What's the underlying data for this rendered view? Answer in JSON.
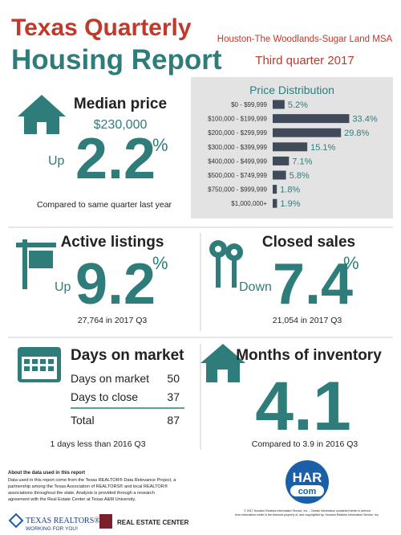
{
  "header": {
    "title_line1": "Texas Quarterly",
    "title_line2": "Housing Report",
    "region": "Houston-The Woodlands-Sugar Land MSA",
    "period": "Third quarter 2017"
  },
  "median_price": {
    "title": "Median price",
    "price": "$230,000",
    "direction": "Up",
    "change": "2.2",
    "unit": "%",
    "note": "Compared to same quarter last year"
  },
  "price_distribution": {
    "type": "bar",
    "orientation": "horizontal",
    "title": "Price Distribution",
    "categories": [
      "$0 - $99,999",
      "$100,000 - $199,999",
      "$200,000 - $299,999",
      "$300,000 - $399,999",
      "$400,000 - $499,999",
      "$500,000 - $749,999",
      "$750,000 - $999,999",
      "$1,000,000+"
    ],
    "values": [
      5.2,
      33.4,
      29.8,
      15.1,
      7.1,
      5.8,
      1.8,
      1.9
    ],
    "value_labels": [
      "5.2%",
      "33.4%",
      "29.8%",
      "15.1%",
      "7.1%",
      "5.8%",
      "1.8%",
      "1.9%"
    ],
    "color": "#404a58",
    "xlim": [
      0,
      35
    ]
  },
  "active_listings": {
    "title": "Active listings",
    "direction": "Up",
    "change": "9.2",
    "unit": "%",
    "note": "27,764 in 2017 Q3"
  },
  "closed_sales": {
    "title": "Closed sales",
    "direction": "Down",
    "change": "7.4",
    "unit": "%",
    "note": "21,054 in 2017 Q3"
  },
  "days_on_market": {
    "title": "Days on market",
    "rows": [
      [
        "Days on market",
        "50"
      ],
      [
        "Days to close",
        "37"
      ]
    ],
    "total": [
      "Total",
      "87"
    ],
    "note": "1 days less than 2016 Q3"
  },
  "months_of_inventory": {
    "title": "Months of inventory",
    "value": "4.1",
    "note": "Compared to 3.9 in 2016 Q3"
  },
  "footer": {
    "about_title": "About the data used in this report",
    "about_lines": [
      "Data used in this report come from the Texas REALTOR® Data Relevance Project, a",
      "partnership among the Texas Association of REALTORS® and local REALTOR®",
      "associations throughout the state. Analysis is provided through a research",
      "agreement with the Real Estate Center at Texas A&M University."
    ],
    "har_logo": [
      "HAR",
      "com"
    ],
    "copyright_lines": [
      "© 2017 Houston Realtors Information Service, Inc. - Certain information contained herein is derived",
      "from information which is the licensed property of, and copyrighted by, Houston Realtors Information Service, Inc."
    ],
    "texas_realtors": "TEXAS REALTORS®",
    "texas_realtors_tagline": "WORKING FOR YOU!",
    "real_estate_center": "REAL ESTATE CENTER"
  }
}
